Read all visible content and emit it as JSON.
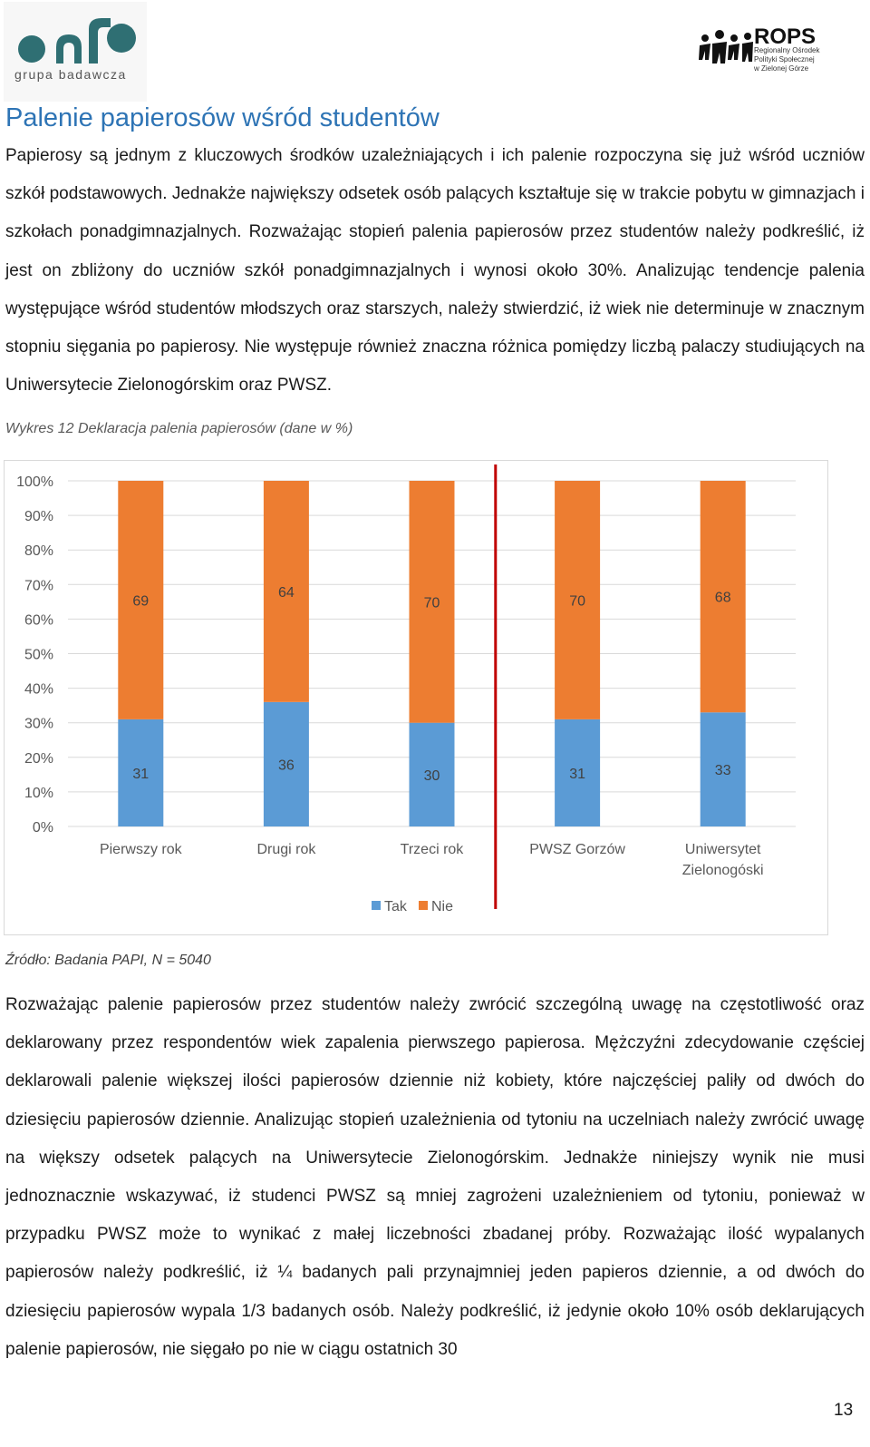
{
  "header": {
    "left_logo_text": "grupa badawcza",
    "right_logo_title": "ROPS",
    "right_logo_lines": [
      "Regionalny Ośrodek",
      "Polityki Społecznej",
      "w Zielonej Górze"
    ]
  },
  "title": "Palenie papierosów wśród studentów",
  "paragraph1": "Papierosy są jednym z kluczowych środków uzależniających i ich palenie rozpoczyna się już wśród uczniów szkół podstawowych. Jednakże największy odsetek osób palących kształtuje się w trakcie pobytu w gimnazjach i szkołach ponadgimnazjalnych. Rozważając stopień palenia papierosów przez studentów należy podkreślić, iż jest on zbliżony do uczniów szkół ponadgimnazjalnych i wynosi około 30%. Analizując tendencje palenia występujące wśród studentów młodszych oraz starszych, należy stwierdzić, iż wiek nie determinuje w znacznym stopniu sięgania po papierosy. Nie występuje również znaczna różnica pomiędzy liczbą palaczy studiujących na Uniwersytecie Zielonogórskim oraz PWSZ.",
  "caption": "Wykres 12 Deklaracja palenia papierosów  (dane w %)",
  "source": "Źródło: Badania PAPI, N = 5040",
  "paragraph2": "Rozważając palenie papierosów przez studentów należy zwrócić szczególną uwagę na częstotliwość oraz deklarowany przez respondentów wiek zapalenia pierwszego papierosa. Mężczyźni zdecydowanie częściej deklarowali palenie większej ilości papierosów dziennie niż kobiety, które najczęściej paliły od dwóch do dziesięciu papierosów dziennie. Analizując stopień uzależnienia od tytoniu na uczelniach należy zwrócić uwagę na większy odsetek palących na Uniwersytecie Zielonogórskim. Jednakże niniejszy wynik nie musi jednoznacznie wskazywać, iż studenci PWSZ są mniej zagrożeni uzależnieniem od tytoniu, ponieważ w przypadku PWSZ może to wynikać z małej liczebności zbadanej próby. Rozważając ilość wypalanych papierosów należy podkreślić, iż ¼ badanych pali przynajmniej jeden papieros dziennie, a od dwóch do dziesięciu papierosów wypala 1/3 badanych osób. Należy podkreślić, iż jedynie około 10% osób deklarujących palenie papierosów, nie sięgało po nie w ciągu ostatnich 30",
  "page_number": "13",
  "colors": {
    "tak": "#5b9bd5",
    "nie": "#ed7d31",
    "divider": "#c00000",
    "title": "#2e74b5",
    "logo_teal": "#2f6f73"
  },
  "chart_data": {
    "type": "bar",
    "stacked": "percent",
    "categories": [
      "Pierwszy rok",
      "Drugi rok",
      "Trzeci rok",
      "PWSZ Gorzów",
      "Uniwersytet Zielonogóski"
    ],
    "series": [
      {
        "name": "Tak",
        "values": [
          31,
          36,
          30,
          31,
          33
        ]
      },
      {
        "name": "Nie",
        "values": [
          69,
          64,
          70,
          70,
          68
        ]
      }
    ],
    "yticks": [
      "0%",
      "10%",
      "20%",
      "30%",
      "40%",
      "50%",
      "60%",
      "70%",
      "80%",
      "90%",
      "100%"
    ],
    "ylim": [
      0,
      100
    ],
    "grid": true,
    "legend": "bottom",
    "divider_between": [
      "Trzeci rok",
      "PWSZ Gorzów"
    ]
  }
}
